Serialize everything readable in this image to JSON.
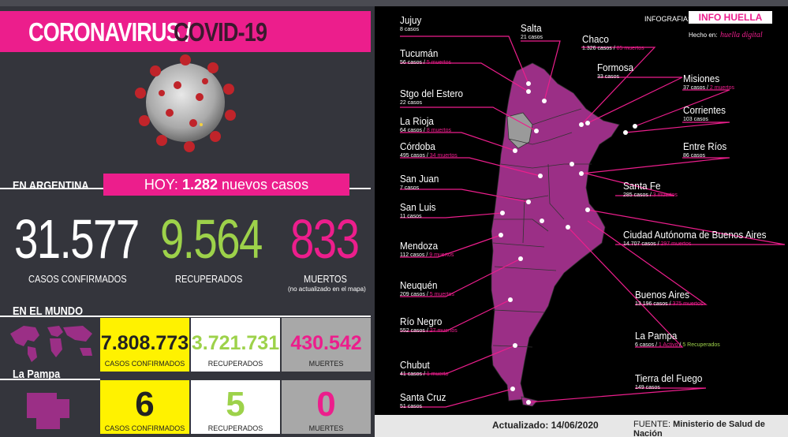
{
  "header": {
    "title_a": "CORONAVIRUS /",
    "title_b": "COVID-19"
  },
  "argentina": {
    "label": "EN ARGENTINA",
    "today_prefix": "HOY:",
    "today_count": "1.282",
    "today_suffix": "nuevos casos",
    "confirmed": "31.577",
    "recovered": "9.564",
    "deaths": "833",
    "confirmed_label": "CASOS CONFIRMADOS",
    "recovered_label": "RECUPERADOS",
    "deaths_label": "MUERTOS",
    "deaths_note": "(no actualizado en el mapa)"
  },
  "world": {
    "label": "EN EL MUNDO",
    "confirmed": "7.808.773",
    "recovered": "3.721.731",
    "deaths": "430.542",
    "confirmed_label": "CASOS CONFIRMADOS",
    "recovered_label": "RECUPERADOS",
    "deaths_label": "MUERTES"
  },
  "lapampa": {
    "label": "La Pampa",
    "confirmed": "6",
    "recovered": "5",
    "deaths": "0",
    "confirmed_label": "CASOS CONFIRMADOS",
    "recovered_label": "RECUPERADOS",
    "deaths_label": "MUERTES"
  },
  "credits": {
    "infografia": "INFOGRAFIA:",
    "brand": "INFO HUELLA",
    "hecho": "Hecho en:",
    "huella": "huella digital",
    "actualizado": "Actualizado: 14/06/2020",
    "fuente_label": "FUENTE:",
    "fuente": "Ministerio de Salud de Nación"
  },
  "provinces": [
    {
      "name": "Jujuy",
      "cases": "8 casos",
      "deaths": ""
    },
    {
      "name": "Salta",
      "cases": "21 casos",
      "deaths": ""
    },
    {
      "name": "Chaco",
      "cases": "1.326 casos /",
      "deaths": "85 muertos"
    },
    {
      "name": "Tucumán",
      "cases": "56 casos /",
      "deaths": "5 muertos"
    },
    {
      "name": "Formosa",
      "cases": "33 casos",
      "deaths": ""
    },
    {
      "name": "Misiones",
      "cases": "37 casos /",
      "deaths": "2 muertos"
    },
    {
      "name": "Stgo del Estero",
      "cases": "22 casos",
      "deaths": ""
    },
    {
      "name": "Corrientes",
      "cases": "103 casos",
      "deaths": ""
    },
    {
      "name": "La Rioja",
      "cases": "64 casos /",
      "deaths": "8 muertos"
    },
    {
      "name": "Córdoba",
      "cases": "495 casos /",
      "deaths": "34 muertos"
    },
    {
      "name": "Entre Ríos",
      "cases": "86 casos",
      "deaths": ""
    },
    {
      "name": "San Juan",
      "cases": "7 casos",
      "deaths": ""
    },
    {
      "name": "Santa Fe",
      "cases": "285 casos /",
      "deaths": "3 muertos"
    },
    {
      "name": "San Luis",
      "cases": "11 casos",
      "deaths": ""
    },
    {
      "name": "Ciudad Autónoma de Buenos Aires",
      "cases": "14.707 casos /",
      "deaths": "297 muertos"
    },
    {
      "name": "Mendoza",
      "cases": "112 casos /",
      "deaths": "9 muertos"
    },
    {
      "name": "Neuquén",
      "cases": "209 casos /",
      "deaths": "5 muertos"
    },
    {
      "name": "Buenos Aires",
      "cases": "13.196 casos /",
      "deaths": "375 muertos"
    },
    {
      "name": "Río Negro",
      "cases": "552 casos /",
      "deaths": "27 muertos"
    },
    {
      "name": "La Pampa",
      "cases": "6 casos /",
      "deaths": "1 Activo",
      "extra": "5 Recuperados"
    },
    {
      "name": "Chubut",
      "cases": "41 casos /",
      "deaths": "1 muerto"
    },
    {
      "name": "Tierra del Fuego",
      "cases": "149 casos",
      "deaths": ""
    },
    {
      "name": "Santa Cruz",
      "cases": "51 casos",
      "deaths": ""
    }
  ],
  "colors": {
    "accent": "#ec1e8c",
    "map": "#9b2f86",
    "yellow": "#fff200",
    "green": "#9dd24a"
  }
}
